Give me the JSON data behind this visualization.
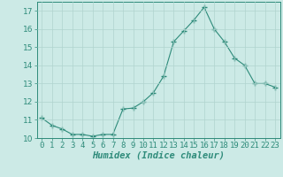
{
  "x": [
    0,
    1,
    2,
    3,
    4,
    5,
    6,
    7,
    8,
    9,
    10,
    11,
    12,
    13,
    14,
    15,
    16,
    17,
    18,
    19,
    20,
    21,
    22,
    23
  ],
  "y": [
    11.1,
    10.7,
    10.5,
    10.2,
    10.2,
    10.1,
    10.2,
    10.2,
    11.6,
    11.65,
    12.0,
    12.5,
    13.4,
    15.3,
    15.9,
    16.5,
    17.2,
    16.0,
    15.3,
    14.4,
    14.0,
    13.0,
    13.0,
    12.8
  ],
  "line_color": "#2e8b7a",
  "marker": "+",
  "marker_size": 4.0,
  "bg_color": "#cceae6",
  "grid_color": "#b0d4cf",
  "xlabel": "Humidex (Indice chaleur)",
  "xlim": [
    -0.5,
    23.5
  ],
  "ylim": [
    10,
    17.5
  ],
  "yticks": [
    10,
    11,
    12,
    13,
    14,
    15,
    16,
    17
  ],
  "xticks": [
    0,
    1,
    2,
    3,
    4,
    5,
    6,
    7,
    8,
    9,
    10,
    11,
    12,
    13,
    14,
    15,
    16,
    17,
    18,
    19,
    20,
    21,
    22,
    23
  ],
  "xlabel_fontsize": 7.5,
  "tick_fontsize": 6.5
}
